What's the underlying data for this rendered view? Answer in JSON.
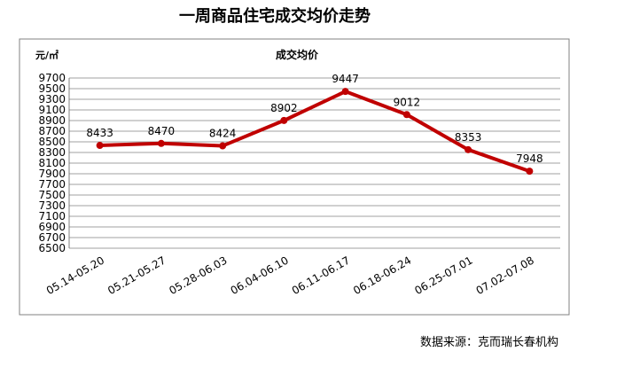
{
  "chart_data": {
    "type": "line",
    "title": "一周商品住宅成交均价走势",
    "y_label": "元/㎡",
    "source": "数据来源：克而瑞长春机构",
    "categories": [
      "05.14-05.20",
      "05.21-05.27",
      "05.28-06.03",
      "06.04-06.10",
      "06.11-06.17",
      "06.18-06.24",
      "06.25-07.01",
      "07.02-07.08"
    ],
    "series": [
      {
        "name": "成交均价",
        "color": "#c00000",
        "values": [
          8433,
          8470,
          8424,
          8902,
          9447,
          9012,
          8353,
          7948
        ]
      }
    ],
    "ylim": [
      6500,
      9700
    ],
    "yticks": [
      6500,
      6700,
      6900,
      7100,
      7300,
      7500,
      7700,
      7900,
      8100,
      8300,
      8500,
      8700,
      8900,
      9100,
      9300,
      9500,
      9700
    ],
    "grid": true
  }
}
